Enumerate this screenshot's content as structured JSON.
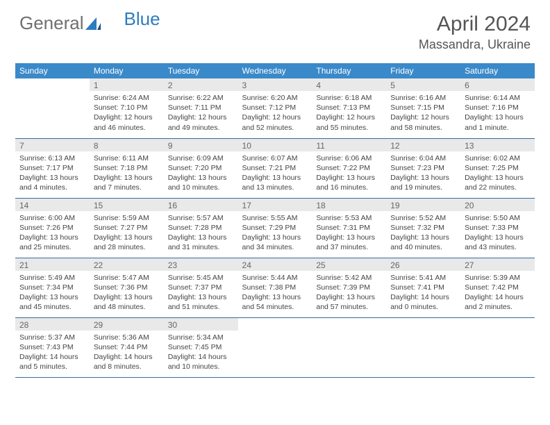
{
  "logo": {
    "text1": "General",
    "text2": "Blue"
  },
  "title": "April 2024",
  "location": "Massandra, Ukraine",
  "colors": {
    "header_bg": "#3a89c9",
    "header_text": "#ffffff",
    "daynum_bg": "#e9e9e9",
    "daynum_text": "#666666",
    "row_border": "#3a6a9a",
    "body_text": "#444444",
    "title_text": "#555555",
    "logo_blue": "#2e7cc0",
    "logo_gray": "#6f6f6f"
  },
  "weekdays": [
    "Sunday",
    "Monday",
    "Tuesday",
    "Wednesday",
    "Thursday",
    "Friday",
    "Saturday"
  ],
  "weeks": [
    [
      {
        "day": "",
        "sunrise": "",
        "sunset": "",
        "daylight": ""
      },
      {
        "day": "1",
        "sunrise": "Sunrise: 6:24 AM",
        "sunset": "Sunset: 7:10 PM",
        "daylight": "Daylight: 12 hours and 46 minutes."
      },
      {
        "day": "2",
        "sunrise": "Sunrise: 6:22 AM",
        "sunset": "Sunset: 7:11 PM",
        "daylight": "Daylight: 12 hours and 49 minutes."
      },
      {
        "day": "3",
        "sunrise": "Sunrise: 6:20 AM",
        "sunset": "Sunset: 7:12 PM",
        "daylight": "Daylight: 12 hours and 52 minutes."
      },
      {
        "day": "4",
        "sunrise": "Sunrise: 6:18 AM",
        "sunset": "Sunset: 7:13 PM",
        "daylight": "Daylight: 12 hours and 55 minutes."
      },
      {
        "day": "5",
        "sunrise": "Sunrise: 6:16 AM",
        "sunset": "Sunset: 7:15 PM",
        "daylight": "Daylight: 12 hours and 58 minutes."
      },
      {
        "day": "6",
        "sunrise": "Sunrise: 6:14 AM",
        "sunset": "Sunset: 7:16 PM",
        "daylight": "Daylight: 13 hours and 1 minute."
      }
    ],
    [
      {
        "day": "7",
        "sunrise": "Sunrise: 6:13 AM",
        "sunset": "Sunset: 7:17 PM",
        "daylight": "Daylight: 13 hours and 4 minutes."
      },
      {
        "day": "8",
        "sunrise": "Sunrise: 6:11 AM",
        "sunset": "Sunset: 7:18 PM",
        "daylight": "Daylight: 13 hours and 7 minutes."
      },
      {
        "day": "9",
        "sunrise": "Sunrise: 6:09 AM",
        "sunset": "Sunset: 7:20 PM",
        "daylight": "Daylight: 13 hours and 10 minutes."
      },
      {
        "day": "10",
        "sunrise": "Sunrise: 6:07 AM",
        "sunset": "Sunset: 7:21 PM",
        "daylight": "Daylight: 13 hours and 13 minutes."
      },
      {
        "day": "11",
        "sunrise": "Sunrise: 6:06 AM",
        "sunset": "Sunset: 7:22 PM",
        "daylight": "Daylight: 13 hours and 16 minutes."
      },
      {
        "day": "12",
        "sunrise": "Sunrise: 6:04 AM",
        "sunset": "Sunset: 7:23 PM",
        "daylight": "Daylight: 13 hours and 19 minutes."
      },
      {
        "day": "13",
        "sunrise": "Sunrise: 6:02 AM",
        "sunset": "Sunset: 7:25 PM",
        "daylight": "Daylight: 13 hours and 22 minutes."
      }
    ],
    [
      {
        "day": "14",
        "sunrise": "Sunrise: 6:00 AM",
        "sunset": "Sunset: 7:26 PM",
        "daylight": "Daylight: 13 hours and 25 minutes."
      },
      {
        "day": "15",
        "sunrise": "Sunrise: 5:59 AM",
        "sunset": "Sunset: 7:27 PM",
        "daylight": "Daylight: 13 hours and 28 minutes."
      },
      {
        "day": "16",
        "sunrise": "Sunrise: 5:57 AM",
        "sunset": "Sunset: 7:28 PM",
        "daylight": "Daylight: 13 hours and 31 minutes."
      },
      {
        "day": "17",
        "sunrise": "Sunrise: 5:55 AM",
        "sunset": "Sunset: 7:29 PM",
        "daylight": "Daylight: 13 hours and 34 minutes."
      },
      {
        "day": "18",
        "sunrise": "Sunrise: 5:53 AM",
        "sunset": "Sunset: 7:31 PM",
        "daylight": "Daylight: 13 hours and 37 minutes."
      },
      {
        "day": "19",
        "sunrise": "Sunrise: 5:52 AM",
        "sunset": "Sunset: 7:32 PM",
        "daylight": "Daylight: 13 hours and 40 minutes."
      },
      {
        "day": "20",
        "sunrise": "Sunrise: 5:50 AM",
        "sunset": "Sunset: 7:33 PM",
        "daylight": "Daylight: 13 hours and 43 minutes."
      }
    ],
    [
      {
        "day": "21",
        "sunrise": "Sunrise: 5:49 AM",
        "sunset": "Sunset: 7:34 PM",
        "daylight": "Daylight: 13 hours and 45 minutes."
      },
      {
        "day": "22",
        "sunrise": "Sunrise: 5:47 AM",
        "sunset": "Sunset: 7:36 PM",
        "daylight": "Daylight: 13 hours and 48 minutes."
      },
      {
        "day": "23",
        "sunrise": "Sunrise: 5:45 AM",
        "sunset": "Sunset: 7:37 PM",
        "daylight": "Daylight: 13 hours and 51 minutes."
      },
      {
        "day": "24",
        "sunrise": "Sunrise: 5:44 AM",
        "sunset": "Sunset: 7:38 PM",
        "daylight": "Daylight: 13 hours and 54 minutes."
      },
      {
        "day": "25",
        "sunrise": "Sunrise: 5:42 AM",
        "sunset": "Sunset: 7:39 PM",
        "daylight": "Daylight: 13 hours and 57 minutes."
      },
      {
        "day": "26",
        "sunrise": "Sunrise: 5:41 AM",
        "sunset": "Sunset: 7:41 PM",
        "daylight": "Daylight: 14 hours and 0 minutes."
      },
      {
        "day": "27",
        "sunrise": "Sunrise: 5:39 AM",
        "sunset": "Sunset: 7:42 PM",
        "daylight": "Daylight: 14 hours and 2 minutes."
      }
    ],
    [
      {
        "day": "28",
        "sunrise": "Sunrise: 5:37 AM",
        "sunset": "Sunset: 7:43 PM",
        "daylight": "Daylight: 14 hours and 5 minutes."
      },
      {
        "day": "29",
        "sunrise": "Sunrise: 5:36 AM",
        "sunset": "Sunset: 7:44 PM",
        "daylight": "Daylight: 14 hours and 8 minutes."
      },
      {
        "day": "30",
        "sunrise": "Sunrise: 5:34 AM",
        "sunset": "Sunset: 7:45 PM",
        "daylight": "Daylight: 14 hours and 10 minutes."
      },
      {
        "day": "",
        "sunrise": "",
        "sunset": "",
        "daylight": ""
      },
      {
        "day": "",
        "sunrise": "",
        "sunset": "",
        "daylight": ""
      },
      {
        "day": "",
        "sunrise": "",
        "sunset": "",
        "daylight": ""
      },
      {
        "day": "",
        "sunrise": "",
        "sunset": "",
        "daylight": ""
      }
    ]
  ]
}
